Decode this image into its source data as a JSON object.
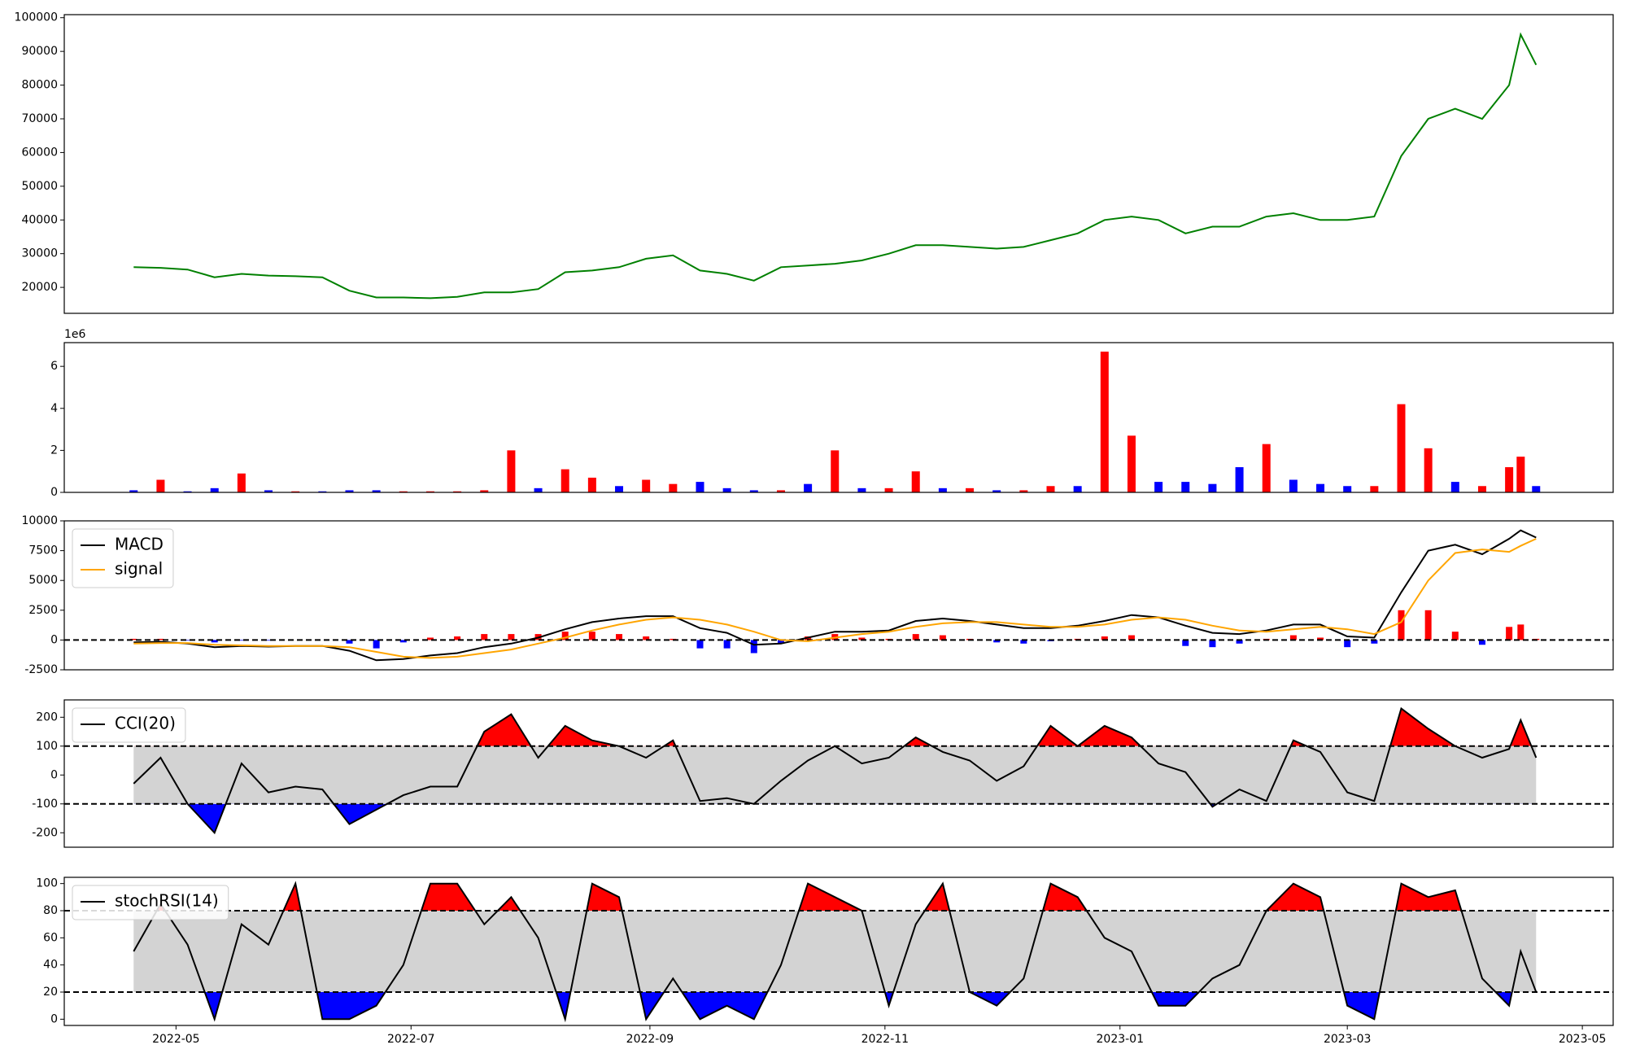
{
  "chart_data": [
    {
      "type": "line",
      "x": [
        "2022-04-20",
        "2022-04-27",
        "2022-05-04",
        "2022-05-11",
        "2022-05-18",
        "2022-05-25",
        "2022-06-01",
        "2022-06-08",
        "2022-06-15",
        "2022-06-22",
        "2022-06-29",
        "2022-07-06",
        "2022-07-13",
        "2022-07-20",
        "2022-07-27",
        "2022-08-03",
        "2022-08-10",
        "2022-08-17",
        "2022-08-24",
        "2022-08-31",
        "2022-09-07",
        "2022-09-14",
        "2022-09-21",
        "2022-09-28",
        "2022-10-05",
        "2022-10-12",
        "2022-10-19",
        "2022-10-26",
        "2022-11-02",
        "2022-11-09",
        "2022-11-16",
        "2022-11-23",
        "2022-11-30",
        "2022-12-07",
        "2022-12-14",
        "2022-12-21",
        "2022-12-28",
        "2023-01-04",
        "2023-01-11",
        "2023-01-18",
        "2023-01-25",
        "2023-02-01",
        "2023-02-08",
        "2023-02-15",
        "2023-02-22",
        "2023-03-01",
        "2023-03-08",
        "2023-03-15",
        "2023-03-22",
        "2023-03-29",
        "2023-04-05",
        "2023-04-12",
        "2023-04-15",
        "2023-04-19"
      ],
      "series": [
        {
          "color": "green",
          "values": [
            26000,
            25800,
            25300,
            23000,
            24000,
            23500,
            23300,
            23000,
            19000,
            17000,
            17000,
            16800,
            17200,
            18500,
            18500,
            19500,
            24500,
            25000,
            26000,
            28500,
            29500,
            25000,
            24000,
            22000,
            26000,
            26500,
            27000,
            28000,
            30000,
            32500,
            32500,
            32000,
            31500,
            32000,
            34000,
            36000,
            40000,
            41000,
            40000,
            36000,
            38000,
            38000,
            41000,
            42000,
            40000,
            40000,
            41000,
            59000,
            70000,
            73000,
            70000,
            80000,
            95000,
            86000
          ]
        }
      ],
      "ylim": [
        12300,
        100900
      ],
      "yticks": [
        20000,
        30000,
        40000,
        50000,
        60000,
        70000,
        80000,
        90000,
        100000
      ]
    },
    {
      "type": "bar",
      "x": [
        "2022-04-20",
        "2022-04-27",
        "2022-05-04",
        "2022-05-11",
        "2022-05-18",
        "2022-05-25",
        "2022-06-01",
        "2022-06-08",
        "2022-06-15",
        "2022-06-22",
        "2022-06-29",
        "2022-07-06",
        "2022-07-13",
        "2022-07-20",
        "2022-07-27",
        "2022-08-03",
        "2022-08-10",
        "2022-08-17",
        "2022-08-24",
        "2022-08-31",
        "2022-09-07",
        "2022-09-14",
        "2022-09-21",
        "2022-09-28",
        "2022-10-05",
        "2022-10-12",
        "2022-10-19",
        "2022-10-26",
        "2022-11-02",
        "2022-11-09",
        "2022-11-16",
        "2022-11-23",
        "2022-11-30",
        "2022-12-07",
        "2022-12-14",
        "2022-12-21",
        "2022-12-28",
        "2023-01-04",
        "2023-01-11",
        "2023-01-18",
        "2023-01-25",
        "2023-02-01",
        "2023-02-08",
        "2023-02-15",
        "2023-02-22",
        "2023-03-01",
        "2023-03-08",
        "2023-03-15",
        "2023-03-22",
        "2023-03-29",
        "2023-04-05",
        "2023-04-12",
        "2023-04-15",
        "2023-04-19"
      ],
      "values": [
        0.1,
        0.6,
        0.05,
        0.2,
        0.9,
        0.1,
        0.05,
        0.05,
        0.1,
        0.1,
        0.05,
        0.05,
        0.05,
        0.1,
        2.0,
        0.2,
        1.1,
        0.7,
        0.3,
        0.6,
        0.4,
        0.5,
        0.2,
        0.1,
        0.1,
        0.4,
        2.0,
        0.2,
        0.2,
        1.0,
        0.2,
        0.2,
        0.1,
        0.1,
        0.3,
        0.3,
        6.7,
        2.7,
        0.5,
        0.5,
        0.4,
        1.2,
        2.3,
        0.6,
        0.4,
        0.3,
        0.3,
        4.2,
        2.1,
        0.5,
        0.3,
        1.2,
        1.7,
        0.3
      ],
      "colors": [
        "blue",
        "red",
        "blue",
        "blue",
        "red",
        "blue",
        "red",
        "blue",
        "blue",
        "blue",
        "red",
        "red",
        "red",
        "red",
        "red",
        "blue",
        "red",
        "red",
        "blue",
        "red",
        "red",
        "blue",
        "blue",
        "blue",
        "red",
        "blue",
        "red",
        "blue",
        "red",
        "red",
        "blue",
        "red",
        "blue",
        "red",
        "red",
        "blue",
        "red",
        "red",
        "blue",
        "blue",
        "blue",
        "blue",
        "red",
        "blue",
        "blue",
        "blue",
        "red",
        "red",
        "red",
        "blue",
        "red",
        "red",
        "red",
        "blue"
      ],
      "offset_label": "1e6",
      "ylim": [
        0,
        7.13
      ],
      "yticks": [
        0,
        2,
        4,
        6
      ]
    },
    {
      "type": "macd",
      "x": [
        "2022-04-20",
        "2022-04-27",
        "2022-05-04",
        "2022-05-11",
        "2022-05-18",
        "2022-05-25",
        "2022-06-01",
        "2022-06-08",
        "2022-06-15",
        "2022-06-22",
        "2022-06-29",
        "2022-07-06",
        "2022-07-13",
        "2022-07-20",
        "2022-07-27",
        "2022-08-03",
        "2022-08-10",
        "2022-08-17",
        "2022-08-24",
        "2022-08-31",
        "2022-09-07",
        "2022-09-14",
        "2022-09-21",
        "2022-09-28",
        "2022-10-05",
        "2022-10-12",
        "2022-10-19",
        "2022-10-26",
        "2022-11-02",
        "2022-11-09",
        "2022-11-16",
        "2022-11-23",
        "2022-11-30",
        "2022-12-07",
        "2022-12-14",
        "2022-12-21",
        "2022-12-28",
        "2023-01-04",
        "2023-01-11",
        "2023-01-18",
        "2023-01-25",
        "2023-02-01",
        "2023-02-08",
        "2023-02-15",
        "2023-02-22",
        "2023-03-01",
        "2023-03-08",
        "2023-03-15",
        "2023-03-22",
        "2023-03-29",
        "2023-04-05",
        "2023-04-12",
        "2023-04-15",
        "2023-04-19"
      ],
      "series": [
        {
          "name": "MACD",
          "color": "black",
          "values": [
            -200,
            -150,
            -300,
            -600,
            -500,
            -550,
            -500,
            -500,
            -900,
            -1700,
            -1600,
            -1300,
            -1100,
            -600,
            -300,
            200,
            900,
            1500,
            1800,
            2000,
            2000,
            1000,
            600,
            -400,
            -300,
            200,
            700,
            700,
            800,
            1600,
            1800,
            1600,
            1300,
            1000,
            1000,
            1200,
            1600,
            2100,
            1900,
            1200,
            600,
            500,
            800,
            1300,
            1300,
            300,
            200,
            4000,
            7500,
            8000,
            7200,
            8500,
            9200,
            8600
          ]
        },
        {
          "name": "signal",
          "color": "orange",
          "values": [
            -300,
            -250,
            -250,
            -400,
            -450,
            -500,
            -500,
            -500,
            -600,
            -1000,
            -1400,
            -1500,
            -1400,
            -1100,
            -800,
            -300,
            200,
            800,
            1300,
            1700,
            1900,
            1700,
            1300,
            700,
            0,
            -100,
            200,
            500,
            700,
            1100,
            1400,
            1500,
            1500,
            1300,
            1100,
            1100,
            1300,
            1700,
            1900,
            1700,
            1200,
            800,
            700,
            900,
            1100,
            900,
            500,
            1500,
            5000,
            7300,
            7600,
            7400,
            7900,
            8500
          ]
        }
      ],
      "histogram": {
        "values": [
          100,
          100,
          -50,
          -200,
          -50,
          -50,
          0,
          0,
          -300,
          -700,
          -200,
          200,
          300,
          500,
          500,
          500,
          700,
          700,
          500,
          300,
          100,
          -700,
          -700,
          -1100,
          -300,
          300,
          500,
          200,
          100,
          500,
          400,
          100,
          -200,
          -300,
          -100,
          100,
          300,
          400,
          0,
          -500,
          -600,
          -300,
          100,
          400,
          200,
          -600,
          -300,
          2500,
          2500,
          700,
          -400,
          1100,
          1300,
          100
        ],
        "up_color": "red",
        "down_color": "blue"
      },
      "hlines": [
        0
      ],
      "legend": "upper left",
      "ylim": [
        -2500,
        10000
      ],
      "yticks": [
        -2500,
        0,
        2500,
        5000,
        7500,
        10000
      ]
    },
    {
      "type": "oscillator",
      "x": [
        "2022-04-20",
        "2022-04-27",
        "2022-05-04",
        "2022-05-11",
        "2022-05-18",
        "2022-05-25",
        "2022-06-01",
        "2022-06-08",
        "2022-06-15",
        "2022-06-22",
        "2022-06-29",
        "2022-07-06",
        "2022-07-13",
        "2022-07-20",
        "2022-07-27",
        "2022-08-03",
        "2022-08-10",
        "2022-08-17",
        "2022-08-24",
        "2022-08-31",
        "2022-09-07",
        "2022-09-14",
        "2022-09-21",
        "2022-09-28",
        "2022-10-05",
        "2022-10-12",
        "2022-10-19",
        "2022-10-26",
        "2022-11-02",
        "2022-11-09",
        "2022-11-16",
        "2022-11-23",
        "2022-11-30",
        "2022-12-07",
        "2022-12-14",
        "2022-12-21",
        "2022-12-28",
        "2023-01-04",
        "2023-01-11",
        "2023-01-18",
        "2023-01-25",
        "2023-02-01",
        "2023-02-08",
        "2023-02-15",
        "2023-02-22",
        "2023-03-01",
        "2023-03-08",
        "2023-03-15",
        "2023-03-22",
        "2023-03-29",
        "2023-04-05",
        "2023-04-12",
        "2023-04-15",
        "2023-04-19"
      ],
      "series": [
        {
          "name": "CCI(20)",
          "color": "black",
          "values": [
            -30,
            60,
            -100,
            -200,
            40,
            -60,
            -40,
            -50,
            -170,
            -120,
            -70,
            -40,
            -40,
            150,
            210,
            60,
            170,
            120,
            100,
            60,
            120,
            -90,
            -80,
            -100,
            -20,
            50,
            100,
            40,
            60,
            130,
            80,
            50,
            -20,
            30,
            170,
            100,
            170,
            130,
            40,
            10,
            -110,
            -50,
            -90,
            120,
            80,
            -60,
            -90,
            230,
            160,
            100,
            60,
            90,
            190,
            60
          ]
        }
      ],
      "hlines": [
        -100,
        100
      ],
      "band_color": "lightgray",
      "above_color": "red",
      "below_color": "blue",
      "legend": "upper left",
      "ylim": [
        -250,
        260
      ],
      "yticks": [
        -200,
        -100,
        0,
        100,
        200
      ]
    },
    {
      "type": "oscillator",
      "x": [
        "2022-04-20",
        "2022-04-27",
        "2022-05-04",
        "2022-05-11",
        "2022-05-18",
        "2022-05-25",
        "2022-06-01",
        "2022-06-08",
        "2022-06-15",
        "2022-06-22",
        "2022-06-29",
        "2022-07-06",
        "2022-07-13",
        "2022-07-20",
        "2022-07-27",
        "2022-08-03",
        "2022-08-10",
        "2022-08-17",
        "2022-08-24",
        "2022-08-31",
        "2022-09-07",
        "2022-09-14",
        "2022-09-21",
        "2022-09-28",
        "2022-10-05",
        "2022-10-12",
        "2022-10-19",
        "2022-10-26",
        "2022-11-02",
        "2022-11-09",
        "2022-11-16",
        "2022-11-23",
        "2022-11-30",
        "2022-12-07",
        "2022-12-14",
        "2022-12-21",
        "2022-12-28",
        "2023-01-04",
        "2023-01-11",
        "2023-01-18",
        "2023-01-25",
        "2023-02-01",
        "2023-02-08",
        "2023-02-15",
        "2023-02-22",
        "2023-03-01",
        "2023-03-08",
        "2023-03-15",
        "2023-03-22",
        "2023-03-29",
        "2023-04-05",
        "2023-04-12",
        "2023-04-15",
        "2023-04-19"
      ],
      "series": [
        {
          "name": "stochRSI(14)",
          "color": "black",
          "values": [
            50,
            85,
            55,
            0,
            70,
            55,
            100,
            0,
            0,
            10,
            40,
            100,
            100,
            70,
            90,
            60,
            0,
            100,
            90,
            0,
            30,
            0,
            10,
            0,
            40,
            100,
            90,
            80,
            10,
            70,
            100,
            20,
            10,
            30,
            100,
            90,
            60,
            50,
            10,
            10,
            30,
            40,
            80,
            100,
            90,
            10,
            0,
            100,
            90,
            95,
            30,
            10,
            50,
            20
          ]
        }
      ],
      "hlines": [
        20,
        80
      ],
      "band_color": "lightgray",
      "above_color": "red",
      "below_color": "blue",
      "legend": "upper left",
      "ylim": [
        -4.6,
        104.6
      ],
      "yticks": [
        0,
        20,
        40,
        60,
        80,
        100
      ],
      "xlim": [
        "2022-04-02",
        "2023-05-09"
      ],
      "xticks": [
        {
          "value": "2022-05-01",
          "label": "2022-05"
        },
        {
          "value": "2022-07-01",
          "label": "2022-07"
        },
        {
          "value": "2022-09-01",
          "label": "2022-09"
        },
        {
          "value": "2022-11-01",
          "label": "2022-11"
        },
        {
          "value": "2023-01-01",
          "label": "2023-01"
        },
        {
          "value": "2023-03-01",
          "label": "2023-03"
        },
        {
          "value": "2023-05-01",
          "label": "2023-05"
        }
      ]
    }
  ]
}
